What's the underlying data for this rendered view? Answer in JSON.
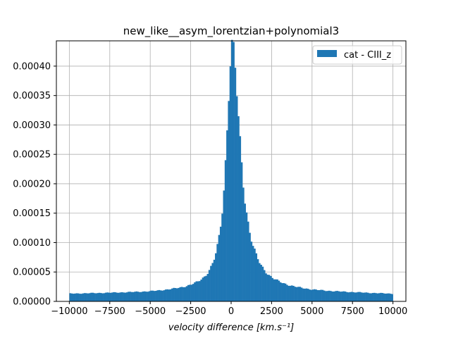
{
  "chart_data": {
    "type": "bar",
    "title": "new_like__asym_lorentzian+polynomial3",
    "xlabel": "velocity difference [km.s⁻¹]",
    "ylabel": "",
    "xlim": [
      -10800,
      10800
    ],
    "ylim": [
      0,
      0.000443
    ],
    "grid": true,
    "legend_position": "top-right",
    "bar_color": "#1f77b4",
    "bin_width": 100,
    "x_ticks": [
      -10000,
      -7500,
      -5000,
      -2500,
      0,
      2500,
      5000,
      7500,
      10000
    ],
    "x_tick_labels": [
      "−10000",
      "−7500",
      "−5000",
      "−2500",
      "0",
      "2500",
      "5000",
      "7500",
      "10000"
    ],
    "y_ticks": [
      0,
      5e-05,
      0.0001,
      0.00015,
      0.0002,
      0.00025,
      0.0003,
      0.00035,
      0.0004
    ],
    "y_tick_labels": [
      "0.00000",
      "0.00005",
      "0.00010",
      "0.00015",
      "0.00020",
      "0.00025",
      "0.00030",
      "0.00035",
      "0.00040"
    ],
    "series": [
      {
        "name": "cat - CIII_z",
        "profile": {
          "peak_center": 50,
          "peak_amplitude": 0.000412,
          "peak_width_left": 420,
          "peak_width_right": 620,
          "background": [
            1.25e-05,
            1.35e-05,
            1.45e-05,
            1.75e-05,
            2.1e-05,
            1.65e-05,
            1.4e-05,
            1.3e-05,
            1.15e-05
          ]
        }
      }
    ]
  }
}
